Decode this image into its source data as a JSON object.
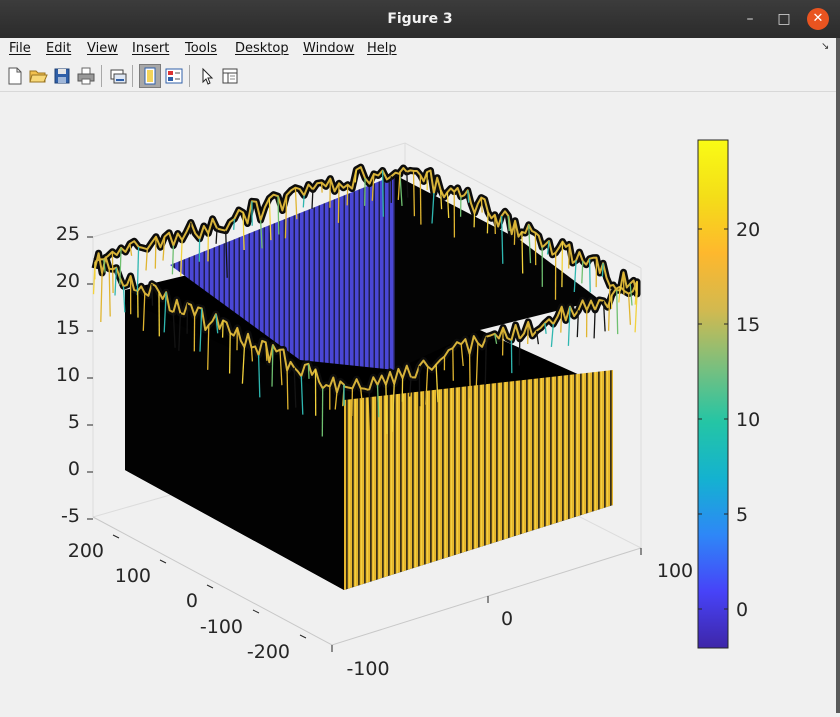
{
  "window": {
    "title": "Figure 3"
  },
  "titlebar_icons": {
    "minimize": "–",
    "maximize": "□",
    "close": "✕"
  },
  "menu": {
    "items": [
      "File",
      "Edit",
      "View",
      "Insert",
      "Tools",
      "Desktop",
      "Window",
      "Help"
    ],
    "dock_arrow": "↘"
  },
  "toolbar": {
    "buttons": [
      "new-figure-icon",
      "open-file-icon",
      "save-icon",
      "print-icon",
      "link-plot-icon",
      "hide-plot-tools-icon",
      "show-plot-tools-icon",
      "edit-plot-icon",
      "open-property-inspector-icon"
    ]
  },
  "plot": {
    "z_ticks": [
      "25",
      "20",
      "15",
      "10",
      "5",
      "0",
      "-5"
    ],
    "y_ticks": [
      "200",
      "100",
      "0",
      "-100",
      "-200"
    ],
    "x_ticks": [
      "-100",
      "0",
      "100"
    ],
    "colorbar_ticks": [
      "20",
      "15",
      "10",
      "5",
      "0"
    ],
    "colormap": [
      "#3e26a8",
      "#4743f8",
      "#2e87f7",
      "#14b2d0",
      "#24c5a5",
      "#7cbf7d",
      "#d3b94f",
      "#feb82d",
      "#f4de18",
      "#f9fb15"
    ]
  },
  "chart_data": {
    "type": "surface",
    "zlim": [
      -5,
      25
    ],
    "ylim": [
      -250,
      250
    ],
    "xlim": [
      -150,
      150
    ],
    "colorbar_range": [
      -2,
      24
    ],
    "surface_top_range": [
      15,
      24
    ],
    "surface_bottom": -5,
    "inner_pit_level": 0,
    "grid": true,
    "legend": "colorbar-right"
  }
}
